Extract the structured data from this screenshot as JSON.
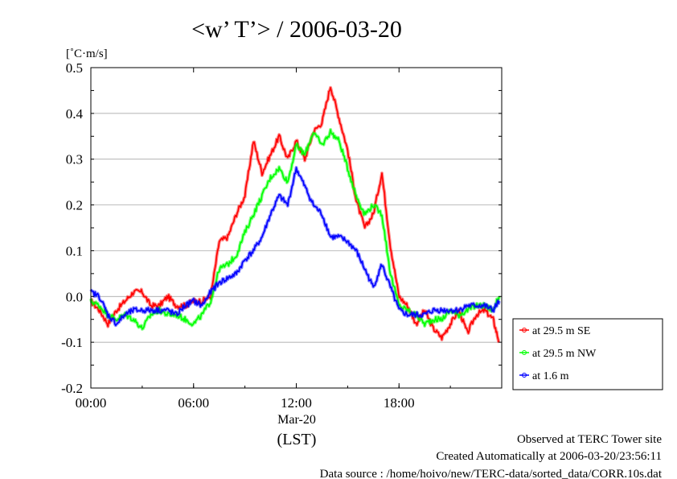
{
  "chart_data": {
    "type": "line",
    "title": "<w’ T’> / 2006-03-20",
    "ylabel": "[˚C·m/s]",
    "xlabel": "(LST)",
    "x_sublabel": "Mar-20",
    "ylim": [
      -0.2,
      0.5
    ],
    "xlim": [
      0,
      24
    ],
    "yticks": [
      "0.5",
      "0.4",
      "0.3",
      "0.2",
      "0.1",
      "0.0",
      "-0.1",
      "-0.2"
    ],
    "ytick_values": [
      0.5,
      0.4,
      0.3,
      0.2,
      0.1,
      0.0,
      -0.1,
      -0.2
    ],
    "xticks": [
      "00:00",
      "06:00",
      "12:00",
      "18:00"
    ],
    "xtick_values": [
      0,
      6,
      12,
      18
    ],
    "grid": "horizontal",
    "legend_position": "right",
    "series": [
      {
        "name": "at 29.5 m SE",
        "color": "#ff0000",
        "x": [
          0,
          0.5,
          1,
          1.5,
          2,
          2.5,
          3,
          3.5,
          4,
          4.5,
          5,
          5.5,
          6,
          6.5,
          7,
          7.5,
          8,
          8.5,
          9,
          9.5,
          10,
          10.5,
          11,
          11.5,
          12,
          12.5,
          13,
          13.5,
          14,
          14.5,
          15,
          15.5,
          16,
          16.5,
          17,
          17.5,
          18,
          18.5,
          19,
          19.5,
          20,
          20.5,
          21,
          21.5,
          22,
          22.5,
          23,
          23.5,
          23.85
        ],
        "y": [
          -0.01,
          -0.03,
          -0.06,
          -0.03,
          -0.01,
          0.01,
          0.01,
          -0.02,
          -0.02,
          0.0,
          -0.02,
          -0.02,
          -0.01,
          -0.01,
          0.0,
          0.12,
          0.13,
          0.18,
          0.22,
          0.34,
          0.27,
          0.31,
          0.35,
          0.3,
          0.34,
          0.3,
          0.36,
          0.38,
          0.46,
          0.39,
          0.32,
          0.21,
          0.15,
          0.18,
          0.27,
          0.11,
          0.0,
          -0.02,
          -0.06,
          -0.03,
          -0.07,
          -0.09,
          -0.06,
          -0.03,
          -0.08,
          -0.04,
          -0.03,
          -0.05,
          -0.1
        ]
      },
      {
        "name": "at 29.5 m NW",
        "color": "#00ff00",
        "x": [
          0,
          0.5,
          1,
          1.5,
          2,
          2.5,
          3,
          3.5,
          4,
          4.5,
          5,
          5.5,
          6,
          6.5,
          7,
          7.5,
          8,
          8.5,
          9,
          9.5,
          10,
          10.5,
          11,
          11.5,
          12,
          12.5,
          13,
          13.5,
          14,
          14.5,
          15,
          15.5,
          16,
          16.5,
          17,
          17.5,
          18,
          18.5,
          19,
          19.5,
          20,
          20.5,
          21,
          21.5,
          22,
          22.5,
          23,
          23.5,
          23.85
        ],
        "y": [
          -0.01,
          -0.02,
          -0.04,
          -0.05,
          -0.04,
          -0.05,
          -0.07,
          -0.04,
          -0.03,
          -0.04,
          -0.04,
          -0.05,
          -0.06,
          -0.04,
          -0.01,
          0.06,
          0.07,
          0.09,
          0.14,
          0.18,
          0.22,
          0.26,
          0.28,
          0.25,
          0.33,
          0.31,
          0.36,
          0.33,
          0.36,
          0.34,
          0.28,
          0.22,
          0.18,
          0.2,
          0.18,
          0.05,
          -0.02,
          -0.03,
          -0.04,
          -0.06,
          -0.05,
          -0.05,
          -0.03,
          -0.04,
          -0.03,
          -0.02,
          -0.02,
          -0.03,
          0.0
        ]
      },
      {
        "name": "at 1.6 m",
        "color": "#0000ff",
        "x": [
          0,
          0.5,
          1,
          1.5,
          2,
          2.5,
          3,
          3.5,
          4,
          4.5,
          5,
          5.5,
          6,
          6.5,
          7,
          7.5,
          8,
          8.5,
          9,
          9.5,
          10,
          10.5,
          11,
          11.5,
          12,
          12.5,
          13,
          13.5,
          14,
          14.5,
          15,
          15.5,
          16,
          16.5,
          17,
          17.5,
          18,
          18.5,
          19,
          19.5,
          20,
          20.5,
          21,
          21.5,
          22,
          22.5,
          23,
          23.5,
          23.85
        ],
        "y": [
          0.01,
          0.0,
          -0.04,
          -0.06,
          -0.04,
          -0.03,
          -0.03,
          -0.03,
          -0.03,
          -0.03,
          -0.04,
          -0.02,
          -0.01,
          -0.02,
          0.01,
          0.03,
          0.04,
          0.05,
          0.08,
          0.1,
          0.13,
          0.18,
          0.22,
          0.2,
          0.28,
          0.24,
          0.2,
          0.18,
          0.13,
          0.13,
          0.12,
          0.1,
          0.06,
          0.02,
          0.07,
          0.02,
          -0.03,
          -0.04,
          -0.04,
          -0.04,
          -0.03,
          -0.03,
          -0.03,
          -0.03,
          -0.02,
          -0.02,
          -0.02,
          -0.03,
          -0.01
        ]
      }
    ]
  },
  "footer": {
    "line1": "Observed at TERC Tower site",
    "line2": "Created Automatically at 2006-03-20/23:56:11",
    "line3": "Data source : /home/hoivo/new/TERC-data/sorted_data/CORR.10s.dat"
  }
}
